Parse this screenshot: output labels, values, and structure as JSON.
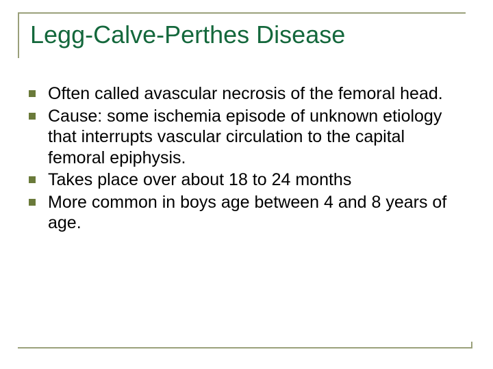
{
  "title": "Legg-Calve-Perthes Disease",
  "accent_color": "#14683c",
  "rule_color": "#9aa07a",
  "bullet_color": "#6a7a3a",
  "text_color": "#000000",
  "background_color": "#ffffff",
  "title_fontsize": 36,
  "body_fontsize": 25,
  "bullets": [
    "Often called avascular necrosis of the femoral head.",
    "Cause: some ischemia episode of unknown etiology that interrupts vascular circulation to the capital femoral epiphysis.",
    "Takes place over about 18 to 24 months",
    "More common in boys age between 4 and 8 years of age."
  ]
}
